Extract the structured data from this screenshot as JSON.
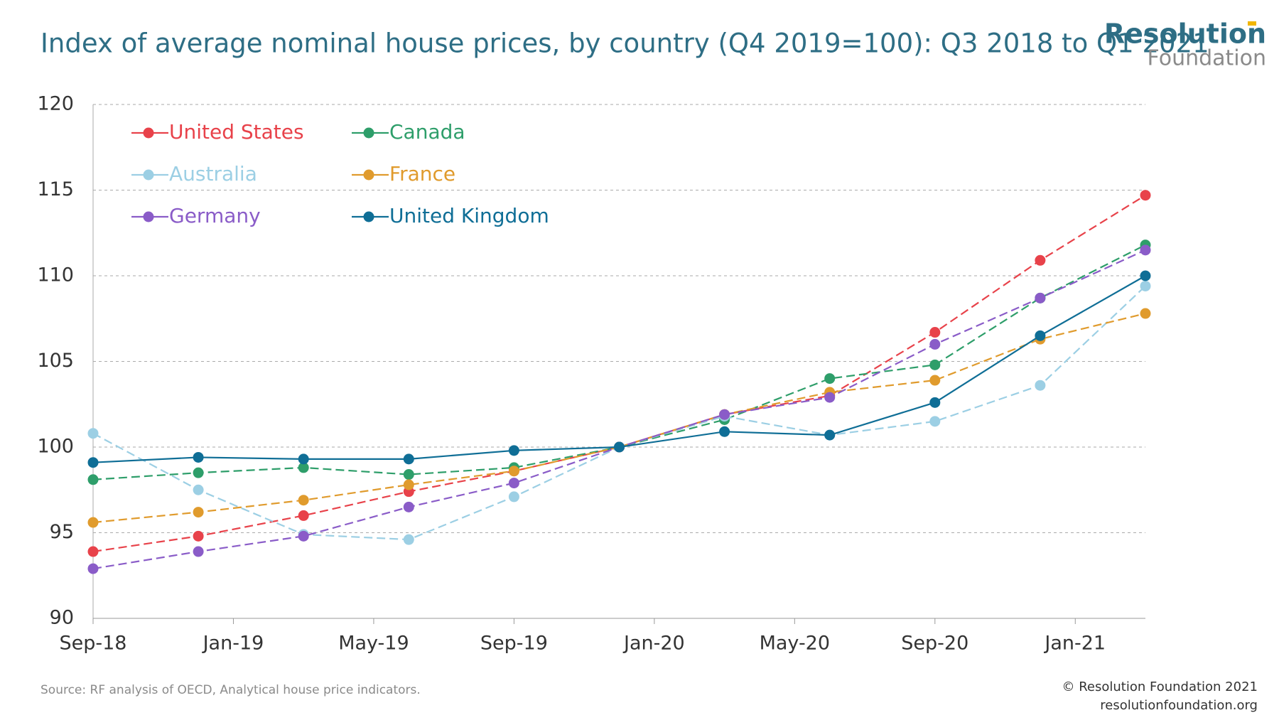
{
  "chart_data": {
    "type": "line",
    "title": "Index of average nominal house prices, by country (Q4 2019=100): Q3 2018 to Q1 2021",
    "x": [
      "2018-09",
      "2018-12",
      "2019-03",
      "2019-06",
      "2019-09",
      "2019-12",
      "2020-03",
      "2020-06",
      "2020-09",
      "2020-12",
      "2021-03"
    ],
    "xlim": [
      "2018-09",
      "2021-03"
    ],
    "xticks": [
      {
        "value": "2018-09",
        "label": "Sep-18"
      },
      {
        "value": "2019-01",
        "label": "Jan-19"
      },
      {
        "value": "2019-05",
        "label": "May-19"
      },
      {
        "value": "2019-09",
        "label": "Sep-19"
      },
      {
        "value": "2020-01",
        "label": "Jan-20"
      },
      {
        "value": "2020-05",
        "label": "May-20"
      },
      {
        "value": "2020-09",
        "label": "Sep-20"
      },
      {
        "value": "2021-01",
        "label": "Jan-21"
      }
    ],
    "ylim": [
      90,
      120
    ],
    "yticks": [
      90,
      95,
      100,
      105,
      110,
      115,
      120
    ],
    "grid": true,
    "legend": "top-left",
    "series": [
      {
        "name": "United States",
        "color": "#e8424a",
        "line_style": "dashed",
        "values": [
          93.9,
          94.8,
          96.0,
          97.4,
          98.6,
          100,
          101.9,
          103.0,
          106.7,
          110.9,
          114.7
        ]
      },
      {
        "name": "Canada",
        "color": "#2e9e6a",
        "line_style": "dashed",
        "values": [
          98.1,
          98.5,
          98.8,
          98.4,
          98.8,
          100,
          101.6,
          104.0,
          104.8,
          108.7,
          111.8
        ]
      },
      {
        "name": "Australia",
        "color": "#9ccfe4",
        "line_style": "dashed",
        "values": [
          100.8,
          97.5,
          94.9,
          94.6,
          97.1,
          100,
          101.8,
          100.7,
          101.5,
          103.6,
          109.4
        ]
      },
      {
        "name": "France",
        "color": "#e09b2d",
        "line_style": "dashed",
        "values": [
          95.6,
          96.2,
          96.9,
          97.8,
          98.6,
          100,
          101.9,
          103.2,
          103.9,
          106.3,
          107.8
        ]
      },
      {
        "name": "Germany",
        "color": "#8a5cc8",
        "line_style": "dashed",
        "values": [
          92.9,
          93.9,
          94.8,
          96.5,
          97.9,
          100,
          101.9,
          102.9,
          106.0,
          108.7,
          111.5
        ]
      },
      {
        "name": "United Kingdom",
        "color": "#0f6e96",
        "line_style": "solid",
        "values": [
          99.1,
          99.4,
          99.3,
          99.3,
          99.8,
          100,
          100.9,
          100.7,
          102.6,
          106.5,
          110.0
        ]
      }
    ],
    "source": "Source: RF analysis of OECD, Analytical house price indicators."
  },
  "branding": {
    "logo_line1": "Resolution",
    "logo_line2": "Foundation",
    "copyright": "© Resolution Foundation 2021",
    "website": "resolutionfoundation.org"
  }
}
